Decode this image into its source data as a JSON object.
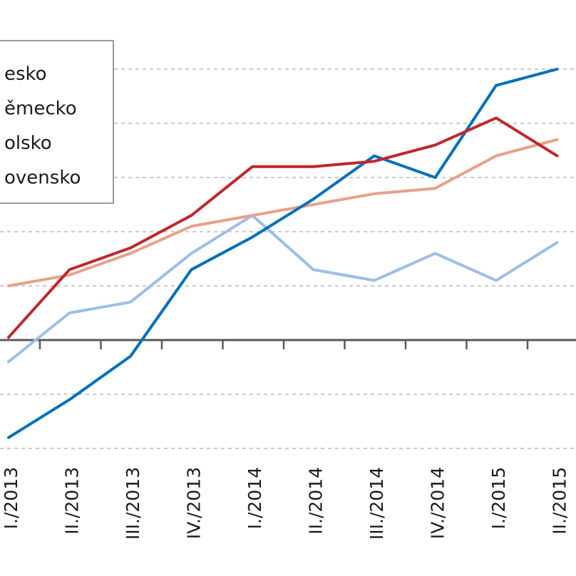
{
  "chart_data": {
    "type": "line",
    "title": "",
    "xlabel": "",
    "ylabel": "",
    "categories": [
      "I./2013",
      "II./2013",
      "III./2013",
      "IV./2013",
      "I./2014",
      "II./2014",
      "III./2014",
      "IV./2014",
      "I./2015",
      "II./2015"
    ],
    "ylim": [
      -2,
      5
    ],
    "y_gridlines": [
      -2,
      -1,
      1,
      2,
      3,
      4,
      5
    ],
    "grid": "horizontal dashed",
    "legend_position": "top-left",
    "series": [
      {
        "name": "esko",
        "color": "#0070b8",
        "values": [
          -1.8,
          -1.1,
          -0.3,
          1.3,
          1.9,
          2.6,
          3.4,
          3.0,
          4.7,
          5.0
        ]
      },
      {
        "name": "ěmecko",
        "color": "#c0272d",
        "values": [
          0.05,
          1.3,
          1.7,
          2.3,
          3.2,
          3.2,
          3.3,
          3.6,
          4.1,
          3.4
        ]
      },
      {
        "name": "olsko",
        "color": "#e8a08a",
        "values": [
          1.0,
          1.2,
          1.6,
          2.1,
          2.3,
          2.5,
          2.7,
          2.8,
          3.4,
          3.7
        ]
      },
      {
        "name": "ovensko",
        "color": "#9ebde6",
        "values": [
          -0.4,
          0.5,
          0.7,
          1.6,
          2.3,
          1.3,
          1.1,
          1.6,
          1.1,
          1.8
        ]
      }
    ]
  }
}
